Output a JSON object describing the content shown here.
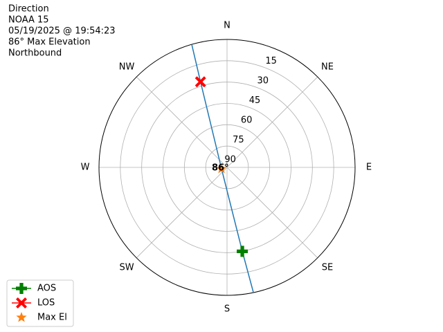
{
  "chart_data": {
    "type": "polar",
    "title_lines": [
      "Direction",
      "NOAA 15",
      "05/19/2025 @ 19:54:23",
      "86° Max Elevation",
      "Northbound"
    ],
    "theta_direction": "clockwise",
    "theta_zero": "N",
    "thetaticks": [
      {
        "value": 0,
        "label": "N"
      },
      {
        "value": 45,
        "label": "NE"
      },
      {
        "value": 90,
        "label": "E"
      },
      {
        "value": 135,
        "label": "SE"
      },
      {
        "value": 180,
        "label": "S"
      },
      {
        "value": 225,
        "label": "SW"
      },
      {
        "value": 270,
        "label": "W"
      },
      {
        "value": 315,
        "label": "NW"
      }
    ],
    "ylim": [
      90,
      0
    ],
    "yticks": [
      15,
      30,
      45,
      60,
      75,
      90
    ],
    "grid": true,
    "track": {
      "color": "#1f77b4",
      "theta": [
        344,
        342.8,
        256,
        169.7,
        168.1
      ],
      "r": [
        0,
        27,
        86,
        30,
        0
      ]
    },
    "series": [
      {
        "name": "AOS",
        "color": "#008000",
        "marker": "plus",
        "line": true,
        "theta": [
          169.7
        ],
        "r": [
          30
        ]
      },
      {
        "name": "LOS",
        "color": "#ff0000",
        "marker": "x",
        "line": true,
        "theta": [
          342.8
        ],
        "r": [
          27
        ]
      },
      {
        "name": "Max El",
        "color": "#ff7f0e",
        "marker": "star",
        "line": false,
        "theta": [
          256
        ],
        "r": [
          86
        ]
      }
    ],
    "annotation": {
      "text": "86°",
      "theta": 256,
      "r": 86
    },
    "legend": "lower left"
  }
}
